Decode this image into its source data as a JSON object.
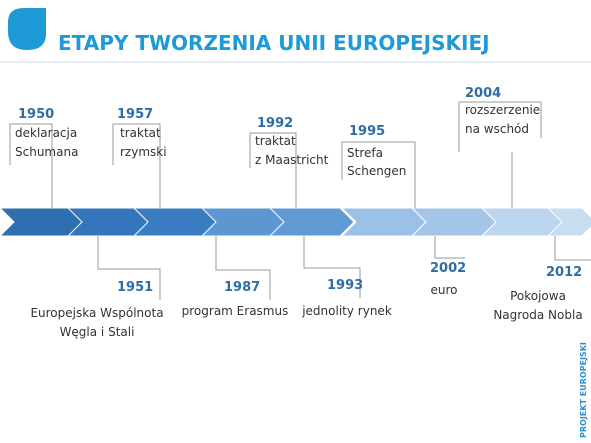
{
  "title": "ETAPY TWORZENIA UNII EUROPEJSKIEJ",
  "side_note": "PROJEKT EUROPEJSKI",
  "events": [
    {
      "year": "1950",
      "lines": [
        "deklaracja",
        "Schumana"
      ]
    },
    {
      "year": "1951",
      "lines": [
        "Europejska Wspólnota",
        "Węgla i Stali"
      ]
    },
    {
      "year": "1957",
      "lines": [
        "traktat",
        "rzymski"
      ]
    },
    {
      "year": "1987",
      "lines": [
        "program Erasmus"
      ]
    },
    {
      "year": "1992",
      "lines": [
        "traktat",
        "z Maastricht"
      ]
    },
    {
      "year": "1993",
      "lines": [
        "jednolity rynek"
      ]
    },
    {
      "year": "1995",
      "lines": [
        "Strefa",
        "Schengen"
      ]
    },
    {
      "year": "2002",
      "lines": [
        "euro"
      ]
    },
    {
      "year": "2004",
      "lines": [
        "rozszerzenie",
        "na wschód"
      ]
    },
    {
      "year": "2012",
      "lines": [
        "Pokojowa",
        "Nagroda Nobla"
      ]
    }
  ]
}
